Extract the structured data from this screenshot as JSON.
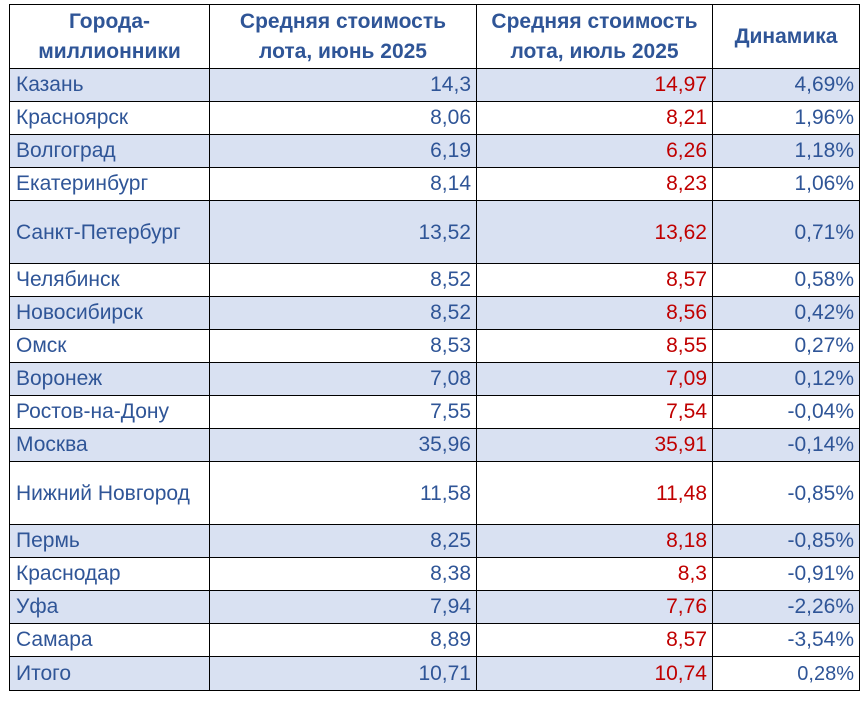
{
  "table": {
    "headers": {
      "city": "Города-миллионники",
      "june": "Средняя стоимость лота, июнь 2025",
      "july": "Средняя стоимость лота, июль 2025",
      "dynamics": "Динамика"
    },
    "rows": [
      {
        "city": "Казань",
        "june": "14,3",
        "july": "14,97",
        "dynamics": "4,69%"
      },
      {
        "city": "Красноярск",
        "june": "8,06",
        "july": "8,21",
        "dynamics": "1,96%"
      },
      {
        "city": "Волгоград",
        "june": "6,19",
        "july": "6,26",
        "dynamics": "1,18%"
      },
      {
        "city": "Екатеринбург",
        "june": "8,14",
        "july": "8,23",
        "dynamics": "1,06%"
      },
      {
        "city": "Санкт-Петербург",
        "june": "13,52",
        "july": "13,62",
        "dynamics": "0,71%"
      },
      {
        "city": "Челябинск",
        "june": "8,52",
        "july": "8,57",
        "dynamics": "0,58%"
      },
      {
        "city": "Новосибирск",
        "june": "8,52",
        "july": "8,56",
        "dynamics": "0,42%"
      },
      {
        "city": "Омск",
        "june": "8,53",
        "july": "8,55",
        "dynamics": "0,27%"
      },
      {
        "city": "Воронеж",
        "june": "7,08",
        "july": "7,09",
        "dynamics": "0,12%"
      },
      {
        "city": "Ростов-на-Дону",
        "june": "7,55",
        "july": "7,54",
        "dynamics": "-0,04%"
      },
      {
        "city": "Москва",
        "june": "35,96",
        "july": "35,91",
        "dynamics": "-0,14%"
      },
      {
        "city": "Нижний Новгород",
        "june": "11,58",
        "july": "11,48",
        "dynamics": "-0,85%"
      },
      {
        "city": "Пермь",
        "june": "8,25",
        "july": "8,18",
        "dynamics": "-0,85%"
      },
      {
        "city": "Краснодар",
        "june": "8,38",
        "july": "8,3",
        "dynamics": "-0,91%"
      },
      {
        "city": "Уфа",
        "june": "7,94",
        "july": "7,76",
        "dynamics": "-2,26%"
      },
      {
        "city": "Самара",
        "june": "8,89",
        "july": "8,57",
        "dynamics": "-3,54%"
      }
    ],
    "total": {
      "city": "Итого",
      "june": "10,71",
      "july": "10,74",
      "dynamics": "0,28%"
    }
  },
  "colors": {
    "text": "#2f5597",
    "july_text": "#c00000",
    "shaded_row": "#d9e1f2",
    "border": "#000000"
  }
}
